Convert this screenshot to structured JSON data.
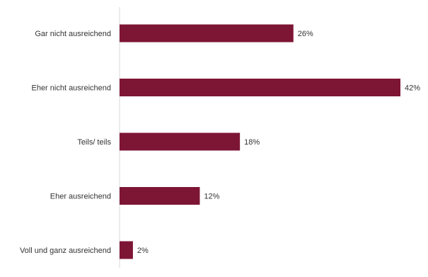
{
  "chart_data": {
    "type": "bar",
    "orientation": "horizontal",
    "categories": [
      "Gar nicht ausreichend",
      "Eher nicht ausreichend",
      "Teils/ teils",
      "Eher ausreichend",
      "Voll und ganz ausreichend"
    ],
    "values": [
      26,
      42,
      18,
      12,
      2
    ],
    "value_labels": [
      "26%",
      "42%",
      "18%",
      "12%",
      "2%"
    ],
    "unit": "%",
    "xlim": [
      0,
      42
    ],
    "grid": false,
    "legend": "none",
    "colors": {
      "bar": "#7d1535",
      "axis": "#d9d9d9",
      "text": "#333333"
    }
  }
}
